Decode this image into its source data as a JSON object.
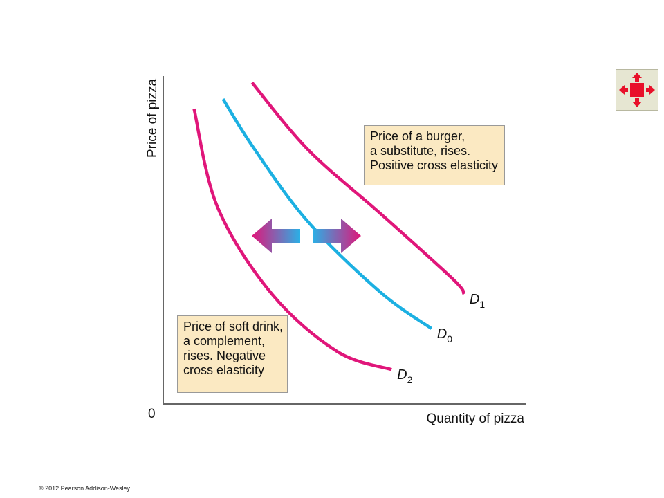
{
  "chart_data": {
    "type": "line",
    "xlabel": "Quantity of pizza",
    "ylabel": "Price of pizza",
    "origin_label": "0",
    "series": [
      {
        "name": "D",
        "subscript": "1",
        "color": "#e0167a",
        "x": [
          2.45,
          4.0,
          6.0,
          8.0,
          8.3
        ],
        "y": [
          9.8,
          7.75,
          5.8,
          3.8,
          3.35
        ]
      },
      {
        "name": "D",
        "subscript": "0",
        "color": "#1cb0e2",
        "x": [
          1.65,
          2.5,
          4.0,
          6.0,
          7.4
        ],
        "y": [
          9.3,
          7.8,
          5.55,
          3.4,
          2.3
        ]
      },
      {
        "name": "D",
        "subscript": "2",
        "color": "#e0167a",
        "x": [
          0.85,
          1.5,
          3.0,
          4.8,
          6.3
        ],
        "y": [
          9.0,
          6.0,
          3.35,
          1.6,
          1.05
        ]
      }
    ],
    "shift_arrows": [
      {
        "direction": "left",
        "from": "D0",
        "to": "D2"
      },
      {
        "direction": "right",
        "from": "D0",
        "to": "D1"
      }
    ],
    "annotations": {
      "substitute": [
        "Price of a burger,",
        "a substitute, rises.",
        "Positive cross elasticity"
      ],
      "complement": [
        "Price of soft drink,",
        "a complement,",
        "rises. Negative",
        "cross elasticity"
      ]
    },
    "xlim": [
      0,
      10
    ],
    "ylim": [
      0,
      10
    ],
    "grid": false
  },
  "footer": {
    "copyright": "© 2012 Pearson Addison-Wesley"
  },
  "controls": {
    "expand_icon": "expand-arrows-icon",
    "accent": "#e8102a"
  }
}
